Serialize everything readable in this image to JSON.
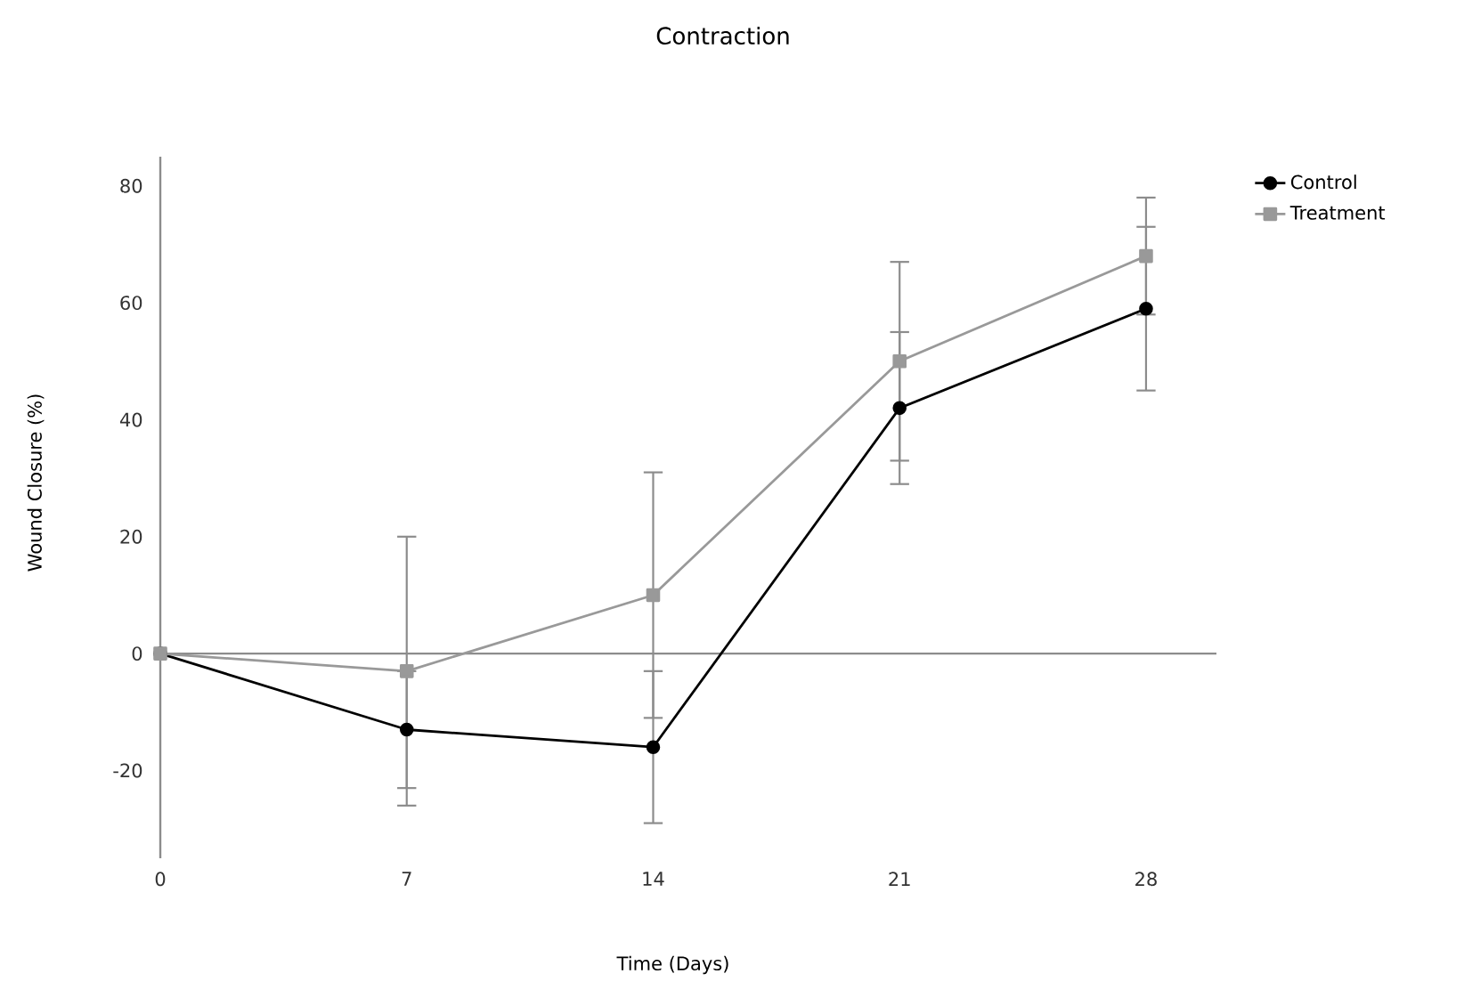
{
  "chart_data": {
    "type": "line",
    "title": "Contraction",
    "xlabel": "Time (Days)",
    "ylabel": "Wound Closure (%)",
    "x": [
      0,
      7,
      14,
      21,
      28
    ],
    "series": [
      {
        "name": "Control",
        "color": "#000000",
        "marker": "circle",
        "values": [
          0,
          -13,
          -16,
          42,
          59
        ],
        "errors": [
          null,
          10,
          13,
          13,
          14
        ]
      },
      {
        "name": "Treatment",
        "color": "#999999",
        "marker": "square",
        "values": [
          0,
          -3,
          10,
          50,
          68
        ],
        "errors": [
          null,
          23,
          21,
          17,
          10
        ]
      }
    ],
    "xlim": [
      0,
      30
    ],
    "ylim": [
      -35,
      85
    ],
    "xticks": [
      0,
      7,
      14,
      21,
      28
    ],
    "yticks": [
      -20,
      0,
      20,
      40,
      60,
      80
    ],
    "legend": "top right",
    "line_style": "solid"
  }
}
